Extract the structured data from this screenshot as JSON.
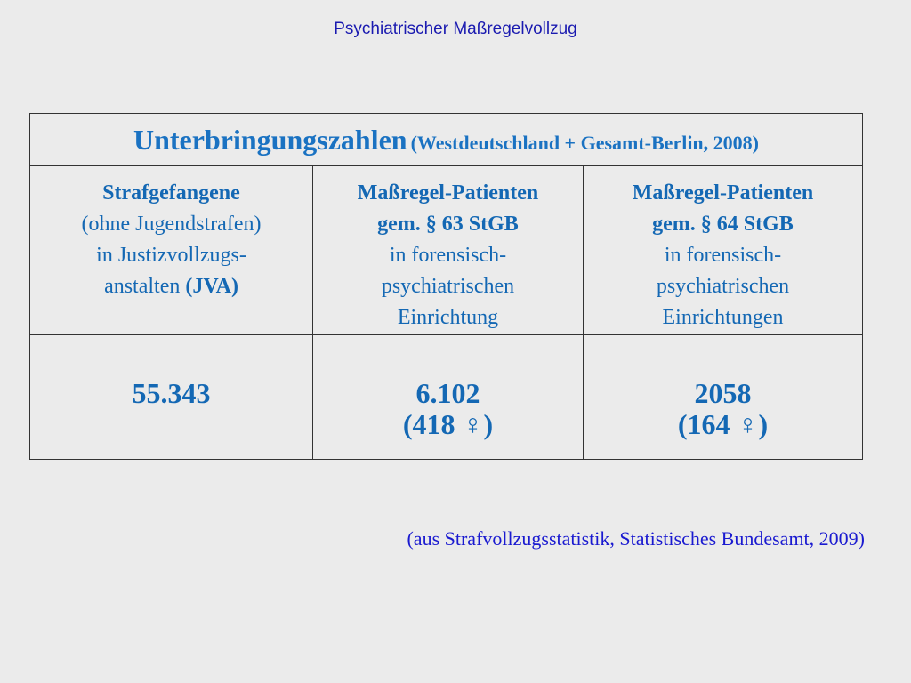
{
  "slide_title": "Psychiatrischer Maßregelvollzug",
  "table": {
    "title": "Unterbringungszahlen",
    "subtitle": "(Westdeutschland + Gesamt-Berlin, 2008)",
    "columns": [
      {
        "heading_lines": [
          "Strafgefangene"
        ],
        "lines": [
          "(ohne Jugendstrafen)",
          "in Justizvollzugs-"
        ],
        "last_line_prefix": "anstalten ",
        "last_line_bold": "(JVA)",
        "value": "55.343",
        "value_sub": ""
      },
      {
        "heading_lines": [
          "Maßregel-Patienten",
          "gem. § 63 StGB"
        ],
        "lines": [
          "in forensisch-",
          "psychiatrischen",
          "Einrichtung"
        ],
        "value": "6.102",
        "value_sub": "(418 ♀)"
      },
      {
        "heading_lines": [
          "Maßregel-Patienten",
          "gem. § 64 StGB"
        ],
        "lines": [
          "in forensisch-",
          "psychiatrischen",
          "Einrichtungen"
        ],
        "value": "2058",
        "value_sub": "(164 ♀)"
      }
    ]
  },
  "source": "(aus Strafvollzugsstatistik, Statistisches Bundesamt, 2009)",
  "colors": {
    "background": "#ebebeb",
    "slide_title": "#1a1ab0",
    "table_title": "#1a72c2",
    "table_text": "#1468b4",
    "source": "#1a1ad0",
    "border": "#333333"
  }
}
